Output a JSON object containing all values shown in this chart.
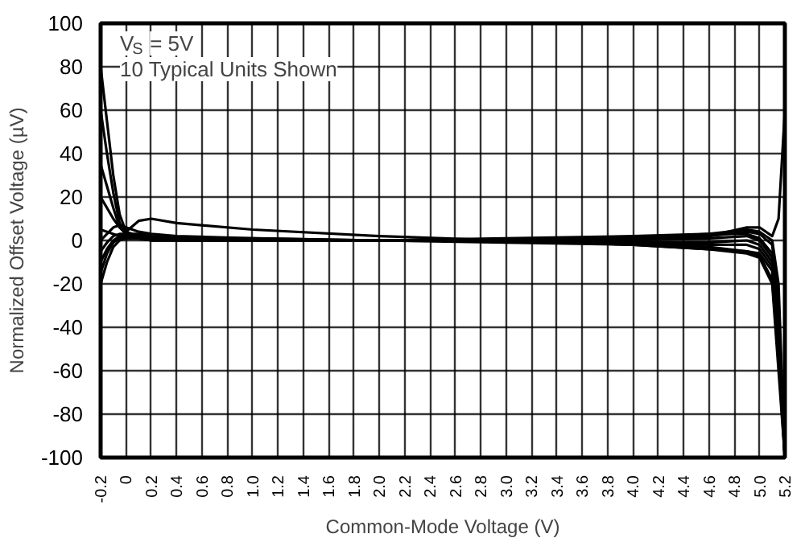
{
  "chart_data": {
    "type": "line",
    "xlabel": "Common-Mode Voltage (V)",
    "ylabel": "Normalized Offset Voltage (µV)",
    "annotations": [
      "V$_{S}$ = 5V",
      "10 Typical Units Shown"
    ],
    "xlim": [
      -0.2,
      5.2
    ],
    "ylim": [
      -100,
      100
    ],
    "xticks": [
      -0.2,
      0,
      0.2,
      0.4,
      0.6,
      0.8,
      {
        "value": 1,
        "label": "1.0"
      },
      1.2,
      1.4,
      1.6,
      1.8,
      {
        "value": 2,
        "label": "2.0"
      },
      2.2,
      2.4,
      2.6,
      2.8,
      {
        "value": 3,
        "label": "3.0"
      },
      3.2,
      3.4,
      3.6,
      3.8,
      {
        "value": 4,
        "label": "4.0"
      },
      4.2,
      4.4,
      4.6,
      4.8,
      {
        "value": 5,
        "label": "5.0"
      },
      5.2
    ],
    "yticks": [
      -100,
      -80,
      -60,
      -40,
      -20,
      0,
      20,
      40,
      60,
      80,
      100
    ],
    "grid": true,
    "x": [
      -0.2,
      -0.15,
      -0.1,
      -0.05,
      0,
      0.1,
      0.2,
      0.4,
      1,
      2,
      3,
      4,
      4.6,
      4.9,
      5.0,
      5.1,
      5.15,
      5.2
    ],
    "series": [
      {
        "color": "#000000",
        "values": [
          80,
          55,
          30,
          12,
          4,
          2,
          1,
          0,
          0,
          0,
          0,
          1,
          3,
          5,
          4,
          0,
          -20,
          -100
        ]
      },
      {
        "color": "#000000",
        "values": [
          60,
          40,
          22,
          8,
          3,
          2,
          1,
          0,
          0,
          0,
          0,
          1,
          2,
          4,
          3,
          -2,
          -30,
          -100
        ]
      },
      {
        "color": "#000000",
        "values": [
          35,
          25,
          15,
          6,
          3,
          2,
          1,
          1,
          0,
          0,
          0,
          0,
          2,
          6,
          6,
          2,
          10,
          60
        ]
      },
      {
        "color": "#000000",
        "values": [
          20,
          15,
          10,
          6,
          4,
          9,
          10,
          8,
          5,
          2,
          0,
          -1,
          -1,
          0,
          -2,
          -10,
          -40,
          -100
        ]
      },
      {
        "color": "#000000",
        "values": [
          5,
          4,
          3,
          2,
          2,
          2,
          1,
          0,
          0,
          0,
          0,
          0,
          1,
          2,
          0,
          -8,
          -35,
          -100
        ]
      },
      {
        "color": "#000000",
        "values": [
          0,
          3,
          6,
          7,
          6,
          4,
          3,
          2,
          1,
          0,
          1,
          2,
          3,
          3,
          1,
          -6,
          -42,
          -100
        ]
      },
      {
        "color": "#000000",
        "values": [
          -5,
          -1,
          2,
          3,
          3,
          3,
          2,
          1,
          1,
          0,
          -1,
          -2,
          -4,
          -5,
          -6,
          -14,
          -48,
          -100
        ]
      },
      {
        "color": "#000000",
        "values": [
          -10,
          -4,
          0,
          2,
          2,
          1,
          0,
          0,
          0,
          0,
          0,
          -1,
          -3,
          -5,
          -7,
          -18,
          -55,
          -100
        ]
      },
      {
        "color": "#000000",
        "values": [
          -20,
          -10,
          -3,
          0,
          1,
          1,
          0,
          0,
          0,
          0,
          0,
          -2,
          -4,
          -6,
          -8,
          -20,
          -60,
          -100
        ]
      },
      {
        "color": "#000000",
        "values": [
          -15,
          -6,
          -1,
          1,
          1,
          1,
          0,
          0,
          0,
          0,
          0,
          -1,
          -2,
          -2,
          -4,
          -12,
          -45,
          -100
        ]
      }
    ]
  }
}
